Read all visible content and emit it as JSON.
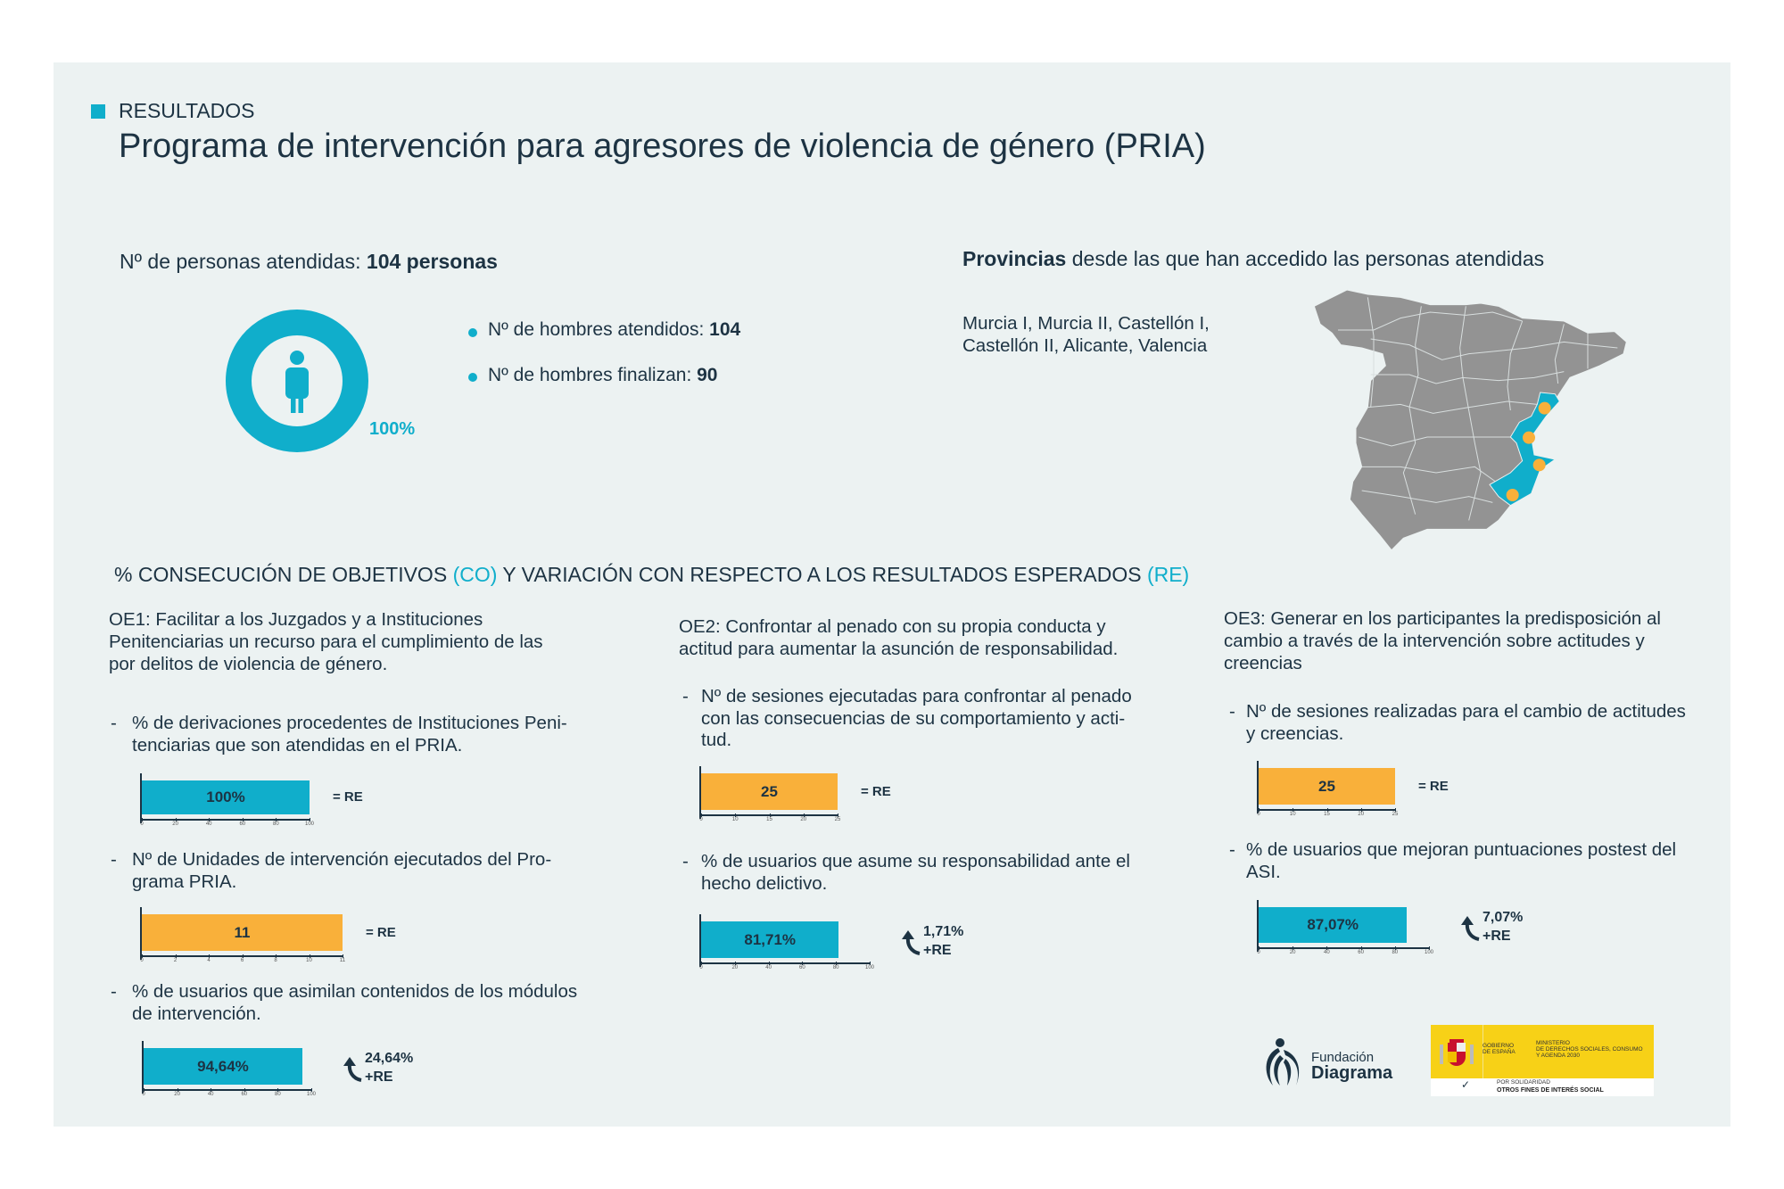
{
  "header": {
    "kicker": "RESULTADOS",
    "title": "Programa de intervención para agresores de violencia de género (PRIA)"
  },
  "colors": {
    "accent": "#10aecb",
    "orange": "#f9b03a",
    "text": "#1d3343",
    "background": "#ecf2f2",
    "map_gray": "#939393"
  },
  "attended": {
    "label": "Nº de personas atendidas: ",
    "value": "104 personas",
    "donut_percent": "100%",
    "donut_fill": 100,
    "icon": "person-icon",
    "bullets": [
      {
        "label": "Nº de hombres atendidos: ",
        "value": "104"
      },
      {
        "label": "Nº de hombres finalizan: ",
        "value": "90"
      }
    ]
  },
  "provinces": {
    "title_bold": "Provincias",
    "title_rest": " desde las que han accedido las personas atendidas",
    "lines": [
      "Murcia I, Murcia II, Castellón I,",
      "Castellón II, Alicante, Valencia"
    ]
  },
  "objectives_heading": {
    "a": "% CONSECUCIÓN DE OBJETIVOS ",
    "co": "(CO)",
    "b": " Y VARIACIÓN CON RESPECTO A LOS RESULTADOS ESPERADOS ",
    "re": "(RE)"
  },
  "objectives": [
    {
      "lines": [
        "OE1: Facilitar a los Juzgados y a Instituciones",
        "Penitenciarias un recurso para el cumplimiento de las",
        "por delitos de violencia de género."
      ],
      "items": [
        {
          "lines": [
            "% de derivaciones procedentes de Instituciones Peni-",
            "tenciarias que son atendidas en el PRIA."
          ]
        },
        {
          "lines": [
            "Nº de Unidades de intervención ejecutados del Pro-",
            "grama PRIA."
          ]
        },
        {
          "lines": [
            "% de usuarios que asimilan contenidos de los módulos",
            "de intervención."
          ]
        }
      ]
    },
    {
      "lines": [
        "OE2: Confrontar al penado con su propia conducta y",
        "actitud para aumentar la asunción de responsabilidad."
      ],
      "items": [
        {
          "lines": [
            "Nº de sesiones ejecutadas para confrontar al penado",
            "con las consecuencias de su comportamiento y acti-",
            "tud."
          ]
        },
        {
          "lines": [
            "% de usuarios que asume su responsabilidad ante el",
            "hecho delictivo."
          ]
        }
      ]
    },
    {
      "lines": [
        "OE3: Generar en los participantes la predisposición al",
        "cambio a través de la intervención sobre actitudes y",
        "creencias"
      ],
      "items": [
        {
          "lines": [
            "Nº de sesiones realizadas para el cambio de actitudes",
            "y creencias."
          ]
        },
        {
          "lines": [
            "% de usuarios que mejoran puntuaciones postest del",
            "ASI."
          ]
        }
      ]
    }
  ],
  "chart_data": [
    {
      "type": "bar",
      "objective": "OE1",
      "value": 100,
      "label": "100%",
      "color": "#10aecb",
      "xlim": [
        0,
        100
      ],
      "ticks": [
        "0",
        "20",
        "40",
        "60",
        "80",
        "100"
      ],
      "variation": "= RE"
    },
    {
      "type": "bar",
      "objective": "OE1",
      "value": 11,
      "label": "11",
      "color": "#f9b03a",
      "xlim": [
        0,
        11
      ],
      "ticks": [
        "0",
        "2",
        "4",
        "6",
        "8",
        "10",
        "11"
      ],
      "variation": "= RE"
    },
    {
      "type": "bar",
      "objective": "OE1",
      "value": 94.64,
      "label": "94,64%",
      "color": "#10aecb",
      "xlim": [
        0,
        100
      ],
      "ticks": [
        "0",
        "20",
        "40",
        "60",
        "80",
        "100"
      ],
      "variation": "24,64%",
      "variation_note": "+RE",
      "arrow": "arrow-up-icon"
    },
    {
      "type": "bar",
      "objective": "OE2",
      "value": 25,
      "label": "25",
      "color": "#f9b03a",
      "xlim": [
        0,
        25
      ],
      "ticks": [
        "0",
        "10",
        "15",
        "20",
        "25"
      ],
      "variation": "= RE"
    },
    {
      "type": "bar",
      "objective": "OE2",
      "value": 81.71,
      "label": "81,71%",
      "color": "#10aecb",
      "xlim": [
        0,
        100
      ],
      "ticks": [
        "0",
        "20",
        "40",
        "60",
        "80",
        "100"
      ],
      "variation": "1,71%",
      "variation_note": "+RE",
      "arrow": "arrow-up-icon"
    },
    {
      "type": "bar",
      "objective": "OE3",
      "value": 25,
      "label": "25",
      "color": "#f9b03a",
      "xlim": [
        0,
        25
      ],
      "ticks": [
        "0",
        "10",
        "15",
        "20",
        "25"
      ],
      "variation": "= RE"
    },
    {
      "type": "bar",
      "objective": "OE3",
      "value": 87.07,
      "label": "87,07%",
      "color": "#10aecb",
      "xlim": [
        0,
        100
      ],
      "ticks": [
        "0",
        "20",
        "40",
        "60",
        "80",
        "100"
      ],
      "variation": "7,07%",
      "variation_note": "+RE",
      "arrow": "arrow-up-icon"
    }
  ],
  "logos": {
    "fundacion": {
      "line1": "Fundación",
      "line2": "Diagrama"
    },
    "gobierno": {
      "gob": [
        "GOBIERNO",
        "DE ESPAÑA"
      ],
      "ministerio": [
        "MINISTERIO",
        "DE DERECHOS SOCIALES, CONSUMO",
        "Y AGENDA 2030"
      ],
      "solidaridad": "POR SOLIDARIDAD",
      "fines": "OTROS FINES DE INTERÉS SOCIAL"
    }
  }
}
